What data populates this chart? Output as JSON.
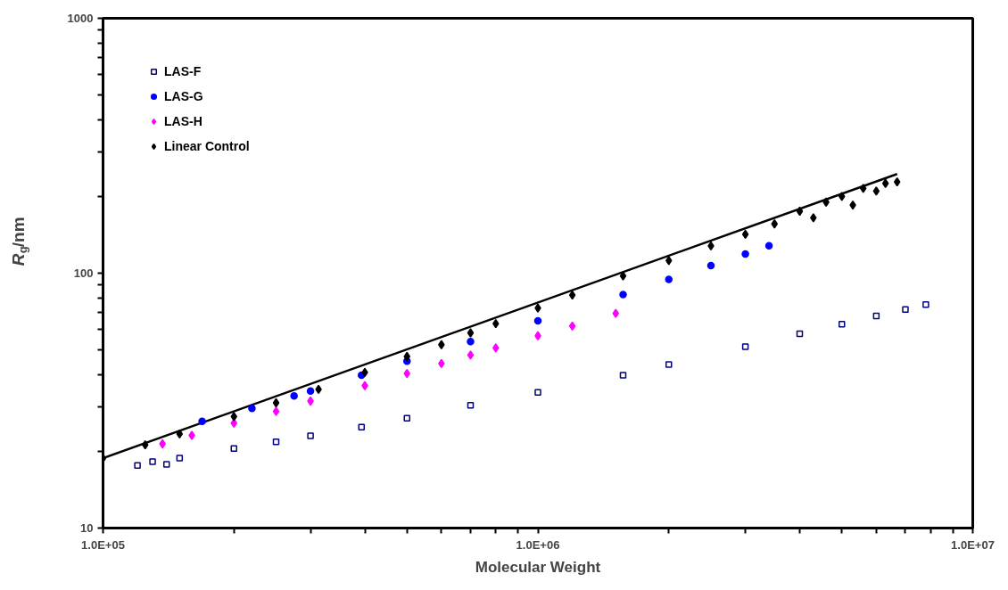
{
  "chart_data": {
    "type": "scatter",
    "xlabel": "Molecular Weight",
    "ylabel": "R$_{g}$/nm",
    "log": "xy",
    "grid": false,
    "legend": "top left",
    "xlim": [
      100000,
      10000000
    ],
    "ylim": [
      10,
      1000
    ],
    "xticks": [
      {
        "value": 100000,
        "label": "1.0E+05"
      },
      {
        "value": 200000,
        "label": null
      },
      {
        "value": 300000,
        "label": null
      },
      {
        "value": 400000,
        "label": null
      },
      {
        "value": 500000,
        "label": null
      },
      {
        "value": 600000,
        "label": null
      },
      {
        "value": 700000,
        "label": null
      },
      {
        "value": 800000,
        "label": null
      },
      {
        "value": 900000,
        "label": null
      },
      {
        "value": 1000000,
        "label": "1.0E+06"
      },
      {
        "value": 2000000,
        "label": null
      },
      {
        "value": 3000000,
        "label": null
      },
      {
        "value": 4000000,
        "label": null
      },
      {
        "value": 5000000,
        "label": null
      },
      {
        "value": 6000000,
        "label": null
      },
      {
        "value": 7000000,
        "label": null
      },
      {
        "value": 8000000,
        "label": null
      },
      {
        "value": 9000000,
        "label": null
      },
      {
        "value": 10000000,
        "label": "1.0E+07"
      }
    ],
    "yticks": [
      10,
      {
        "value": 20,
        "label": null
      },
      {
        "value": 30,
        "label": null
      },
      {
        "value": 40,
        "label": null
      },
      {
        "value": 50,
        "label": null
      },
      {
        "value": 60,
        "label": null
      },
      {
        "value": 70,
        "label": null
      },
      {
        "value": 80,
        "label": null
      },
      {
        "value": 90,
        "label": null
      },
      100,
      {
        "value": 200,
        "label": null
      },
      {
        "value": 300,
        "label": null
      },
      {
        "value": 400,
        "label": null
      },
      {
        "value": 500,
        "label": null
      },
      {
        "value": 600,
        "label": null
      },
      {
        "value": 700,
        "label": null
      },
      {
        "value": 800,
        "label": null
      },
      {
        "value": 900,
        "label": null
      },
      1000
    ],
    "series": [
      {
        "type": "line",
        "color": "#000000",
        "x": [
          100000,
          6700000
        ],
        "values": [
          18.8,
          245
        ]
      },
      {
        "name": "LAS-F",
        "color": "#000080",
        "marker": "square",
        "x": [
          120000,
          130000,
          140000,
          150000,
          200000,
          250000,
          300000,
          393000,
          500000,
          700000,
          1000000,
          1570000,
          2000000,
          3000000,
          4000000,
          5000000,
          6000000,
          7000000,
          7800000
        ],
        "values": [
          17.6,
          18.2,
          17.8,
          18.8,
          20.5,
          21.8,
          23,
          24.9,
          27,
          30.3,
          34.1,
          39.8,
          43.8,
          51.5,
          57.8,
          63.1,
          67.9,
          72,
          75.3
        ]
      },
      {
        "name": "LAS-G",
        "color": "#0000ff",
        "marker": "circle",
        "x": [
          169000,
          220000,
          275000,
          300000,
          393000,
          500000,
          700000,
          1000000,
          1570000,
          2000000,
          2500000,
          3000000,
          3400000
        ],
        "values": [
          26.2,
          29.5,
          33,
          34.5,
          39.8,
          45.2,
          53.9,
          65,
          82.4,
          94.6,
          107,
          119,
          128
        ]
      },
      {
        "name": "LAS-H",
        "color": "#ff00ff",
        "marker": "diamond",
        "x": [
          137000,
          160000,
          200000,
          250000,
          300000,
          400000,
          500000,
          600000,
          700000,
          800000,
          1000000,
          1200000,
          1510000
        ],
        "values": [
          21.4,
          23.1,
          25.8,
          28.7,
          31.5,
          36.2,
          40.4,
          44.2,
          47.7,
          50.9,
          56.8,
          62,
          69.5
        ]
      },
      {
        "name": "Linear Control",
        "color": "#000000",
        "marker": "diamond",
        "x": [
          100000,
          125000,
          150000,
          200000,
          250000,
          313000,
          400000,
          500000,
          600000,
          700000,
          800000,
          1000000,
          1200000,
          1570000,
          2000000,
          2500000,
          3000000,
          3500000,
          4000000,
          4300000,
          4600000,
          5000000,
          5300000,
          5600000,
          6000000,
          6300000,
          6700000
        ],
        "values": [
          18.8,
          21.2,
          23.4,
          27.4,
          31,
          35,
          40.8,
          47.1,
          52.4,
          58.3,
          63.4,
          73,
          82,
          97.5,
          112,
          128,
          142,
          156,
          175,
          165,
          190,
          200,
          185,
          215,
          210,
          225,
          228
        ]
      }
    ]
  }
}
